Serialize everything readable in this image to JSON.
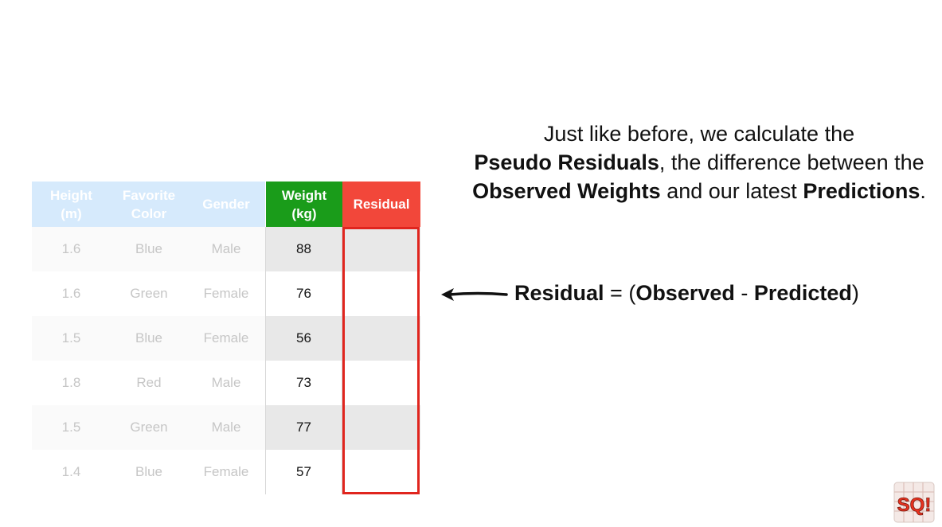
{
  "table": {
    "headers": [
      "Height\n(m)",
      "Favorite\nColor",
      "Gender",
      "Weight\n(kg)",
      "Residual"
    ],
    "rows": [
      [
        "1.6",
        "Blue",
        "Male",
        "88",
        ""
      ],
      [
        "1.6",
        "Green",
        "Female",
        "76",
        ""
      ],
      [
        "1.5",
        "Blue",
        "Female",
        "56",
        ""
      ],
      [
        "1.8",
        "Red",
        "Male",
        "73",
        ""
      ],
      [
        "1.5",
        "Green",
        "Male",
        "77",
        ""
      ],
      [
        "1.4",
        "Blue",
        "Female",
        "57",
        ""
      ]
    ]
  },
  "explanation": {
    "t1": "Just like before, we calculate the",
    "b1": "Pseudo Residuals",
    "t2": ", the difference between the ",
    "b2": "Observed Weights",
    "t3": " and our latest ",
    "b3": "Predictions",
    "t4": "."
  },
  "formula": {
    "lhs": "Residual",
    "eq": " = (",
    "observed": "Observed",
    "minus": " - ",
    "predicted": "Predicted",
    "close": ")"
  },
  "logo": {
    "text": "SQ!",
    "icon": "statquest-logo-icon"
  },
  "colors": {
    "faded_header": "#d6eafc",
    "weight_header": "#1a9c1a",
    "residual_header": "#f2473a",
    "residual_border": "#e0251e"
  }
}
